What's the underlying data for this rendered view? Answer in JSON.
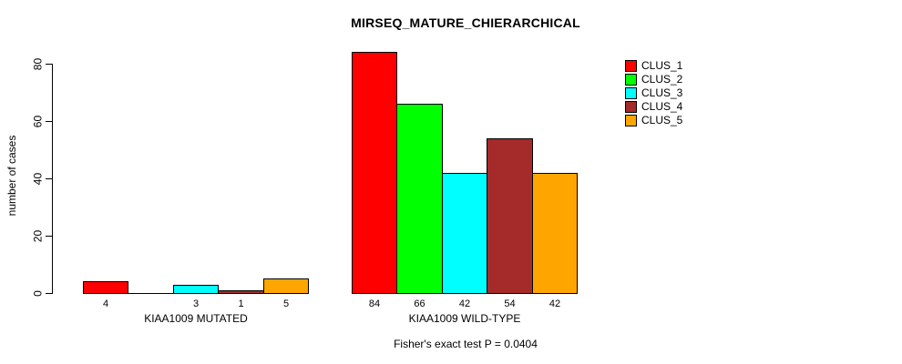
{
  "title": "MIRSEQ_MATURE_CHIERARCHICAL",
  "ylabel": "number of cases",
  "footer": "Fisher's exact test P = 0.0404",
  "chart_data": {
    "type": "bar",
    "title": "MIRSEQ_MATURE_CHIERARCHICAL",
    "xlabel": "",
    "ylabel": "number of cases",
    "ylim": [
      0,
      84
    ],
    "yticks": [
      0,
      20,
      40,
      60,
      80
    ],
    "grid": false,
    "legend_position": "top-right",
    "series": [
      {
        "name": "CLUS_1",
        "color": "#FF0000"
      },
      {
        "name": "CLUS_2",
        "color": "#00FF00"
      },
      {
        "name": "CLUS_3",
        "color": "#00FFFF"
      },
      {
        "name": "CLUS_4",
        "color": "#A52A2A"
      },
      {
        "name": "CLUS_5",
        "color": "#FFA500"
      }
    ],
    "groups": [
      {
        "label": "KIAA1009 MUTATED",
        "values": [
          4,
          0,
          3,
          1,
          5
        ],
        "bar_labels": [
          "4",
          "",
          "3",
          "1",
          "5"
        ]
      },
      {
        "label": "KIAA1009 WILD-TYPE",
        "values": [
          84,
          66,
          42,
          54,
          42
        ],
        "bar_labels": [
          "84",
          "66",
          "42",
          "54",
          "42"
        ]
      }
    ],
    "annotation": "Fisher's exact test P = 0.0404"
  }
}
